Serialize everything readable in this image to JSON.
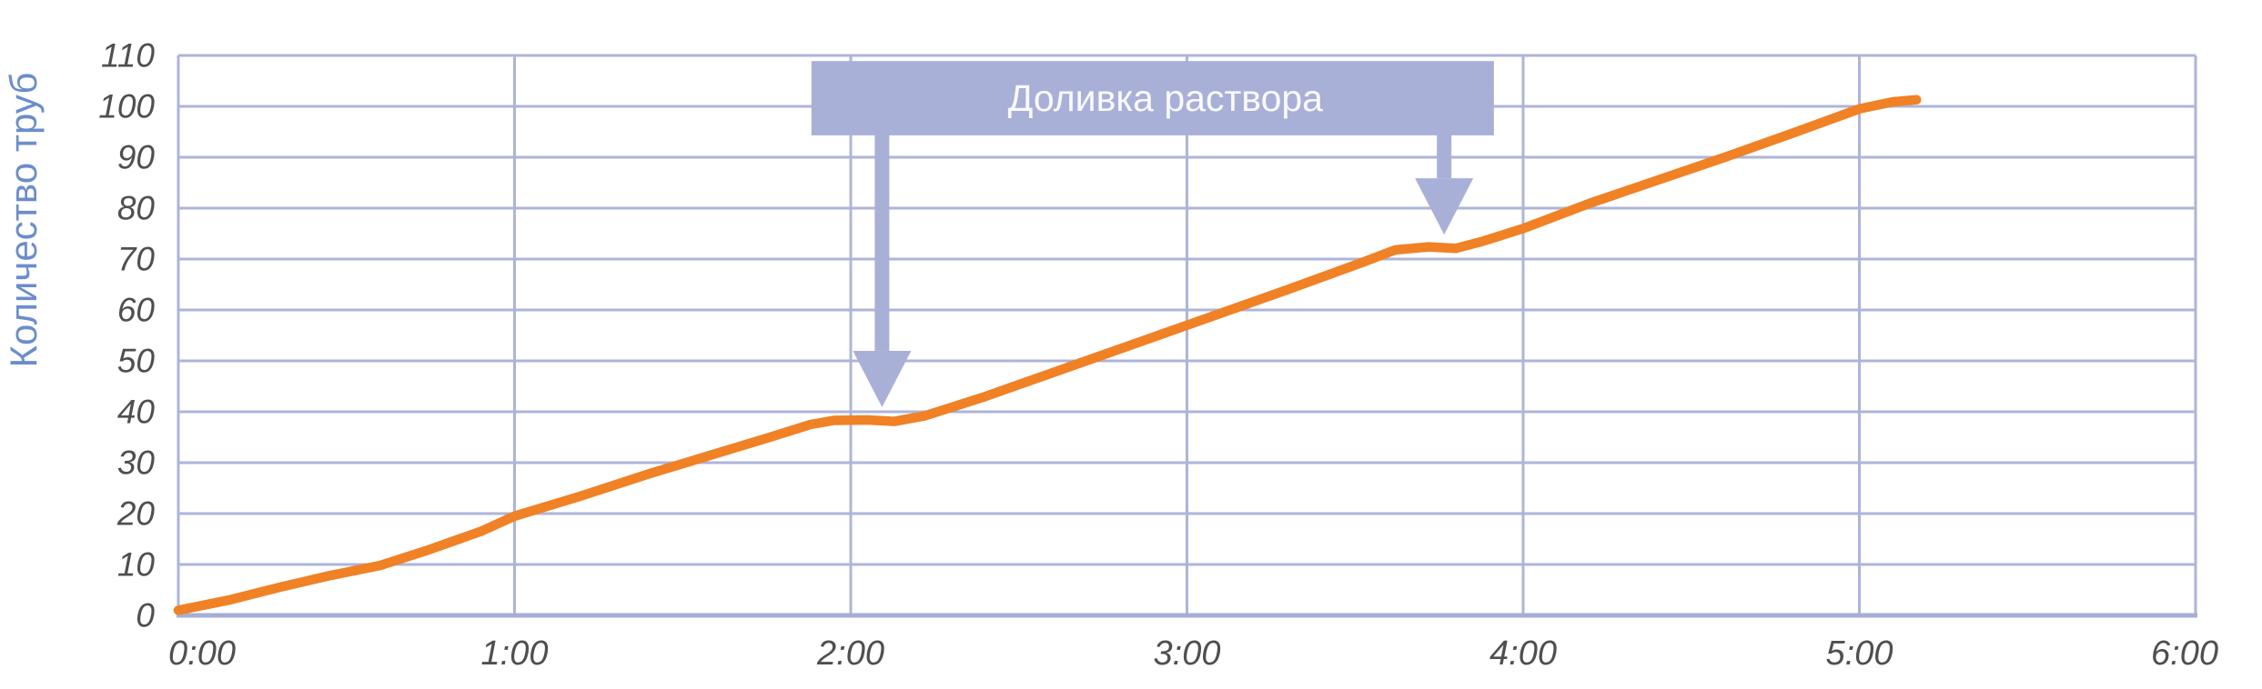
{
  "colors": {
    "background": "#ffffff",
    "gridline": "#aeb4d9",
    "axis_line": "#a6aed5",
    "series_orange": "#f08125",
    "annotation_fill": "#a9b0d8",
    "annotation_text": "#fafafd",
    "tick_text": "#4f4f4f",
    "y_title_text": "#6b8dcb"
  },
  "chart_data": {
    "type": "line",
    "title": "",
    "xlabel": "",
    "ylabel": "Количество труб",
    "legend": "none",
    "grid": "on",
    "xlim_hours": [
      0,
      6
    ],
    "ylim": [
      0,
      110
    ],
    "y_ticks": [
      0,
      10,
      20,
      30,
      40,
      50,
      60,
      70,
      80,
      90,
      100,
      110
    ],
    "x_ticks_hours": [
      0,
      1,
      2,
      3,
      4,
      5,
      6
    ],
    "x_tick_labels": [
      "0:00",
      "1:00",
      "2:00",
      "3:00",
      "4:00",
      "5:00",
      "6:00"
    ],
    "series": [
      {
        "name": "Количество труб",
        "color": "#f08125",
        "points_t_hours_value": [
          [
            0.0,
            1.0
          ],
          [
            0.15,
            3.0
          ],
          [
            0.3,
            5.5
          ],
          [
            0.45,
            7.8
          ],
          [
            0.6,
            9.8
          ],
          [
            0.75,
            13.0
          ],
          [
            0.9,
            16.5
          ],
          [
            1.0,
            19.5
          ],
          [
            1.2,
            23.5
          ],
          [
            1.4,
            27.8
          ],
          [
            1.6,
            31.8
          ],
          [
            1.75,
            34.8
          ],
          [
            1.88,
            37.5
          ],
          [
            1.95,
            38.3
          ],
          [
            2.05,
            38.4
          ],
          [
            2.13,
            38.1
          ],
          [
            2.22,
            39.2
          ],
          [
            2.4,
            43.0
          ],
          [
            2.7,
            50.0
          ],
          [
            3.0,
            57.0
          ],
          [
            3.3,
            64.0
          ],
          [
            3.52,
            69.3
          ],
          [
            3.62,
            71.8
          ],
          [
            3.72,
            72.4
          ],
          [
            3.8,
            72.1
          ],
          [
            3.88,
            73.5
          ],
          [
            4.0,
            76.0
          ],
          [
            4.2,
            81.0
          ],
          [
            4.4,
            85.5
          ],
          [
            4.6,
            90.0
          ],
          [
            4.8,
            94.7
          ],
          [
            5.0,
            99.5
          ],
          [
            5.1,
            100.9
          ],
          [
            5.17,
            101.3
          ]
        ]
      }
    ],
    "callout": {
      "text": "Доливка раствора",
      "box_t_hours": [
        1.883,
        3.913
      ],
      "box_value_range": [
        94.3,
        108.9
      ],
      "arrows": [
        {
          "t_hours": 2.093,
          "tip_value": 40.9
        },
        {
          "t_hours": 3.765,
          "tip_value": 74.8
        }
      ]
    }
  }
}
